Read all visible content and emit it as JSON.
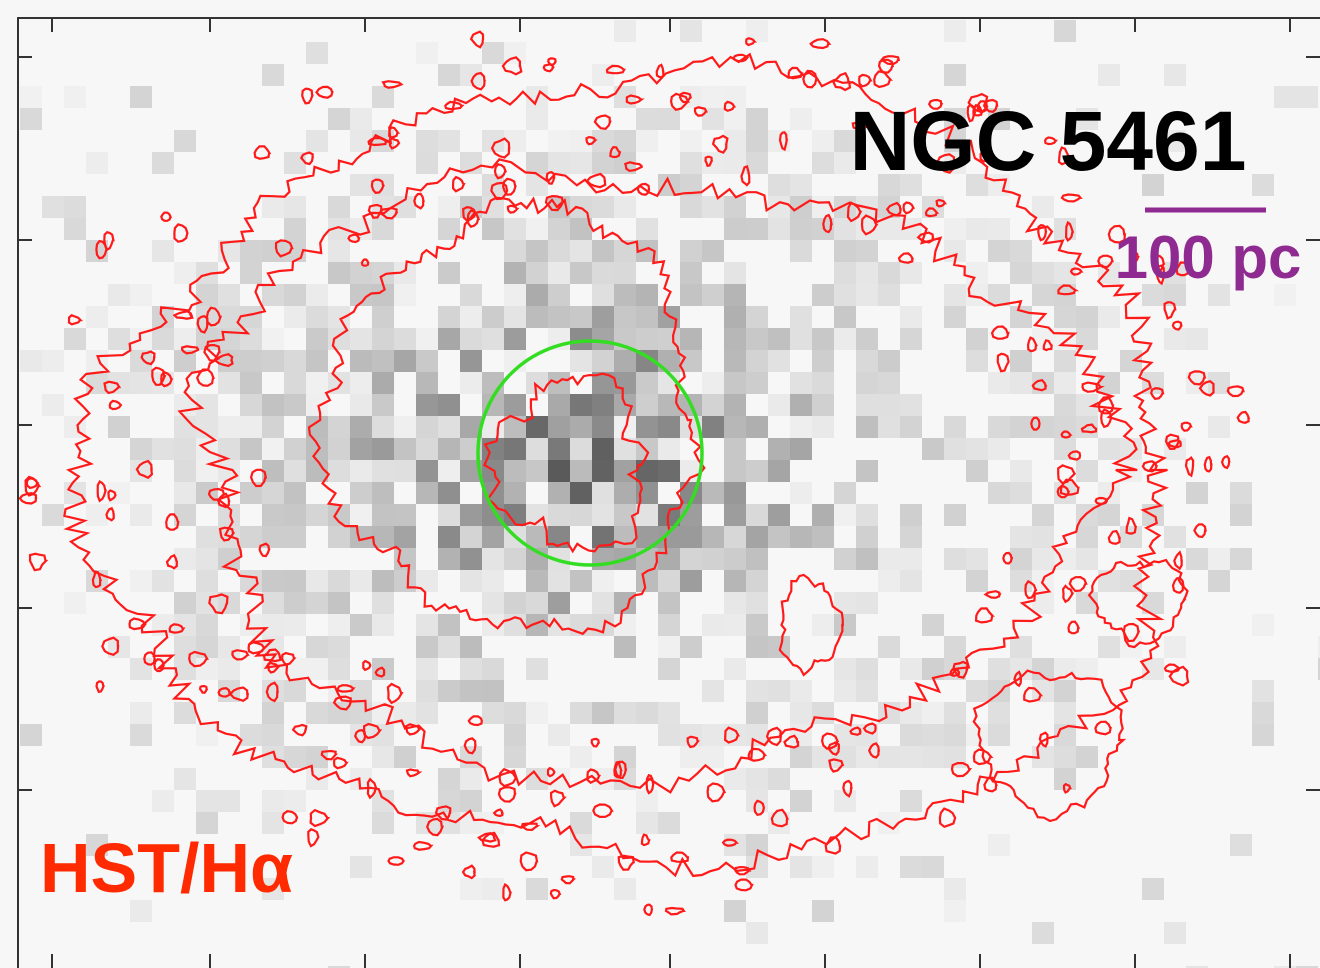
{
  "title": "NGC 5461",
  "scale_bar": {
    "label": "100 pc"
  },
  "overlay_label": "HST/Hα"
}
